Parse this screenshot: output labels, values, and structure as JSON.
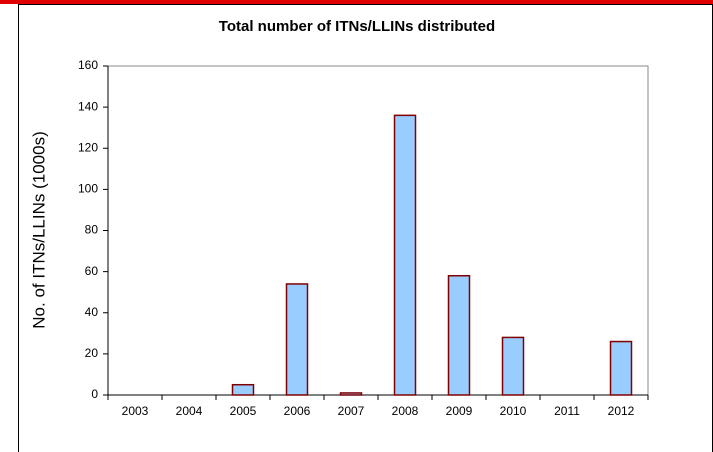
{
  "chart_data": {
    "type": "bar",
    "title": "Total number of ITNs/LLINs distributed",
    "y_label": "No. of ITNs/LLINs (1000s)",
    "categories": [
      "2003",
      "2004",
      "2005",
      "2006",
      "2007",
      "2008",
      "2009",
      "2010",
      "2011",
      "2012"
    ],
    "values": [
      0,
      0,
      5,
      54,
      1,
      136,
      58,
      28,
      0,
      26
    ],
    "color": "#99ccff",
    "edge_color": "#800000",
    "ylim": [
      0,
      160
    ],
    "yticks": [
      0,
      20,
      40,
      60,
      80,
      100,
      120,
      140,
      160
    ],
    "grid": false
  }
}
